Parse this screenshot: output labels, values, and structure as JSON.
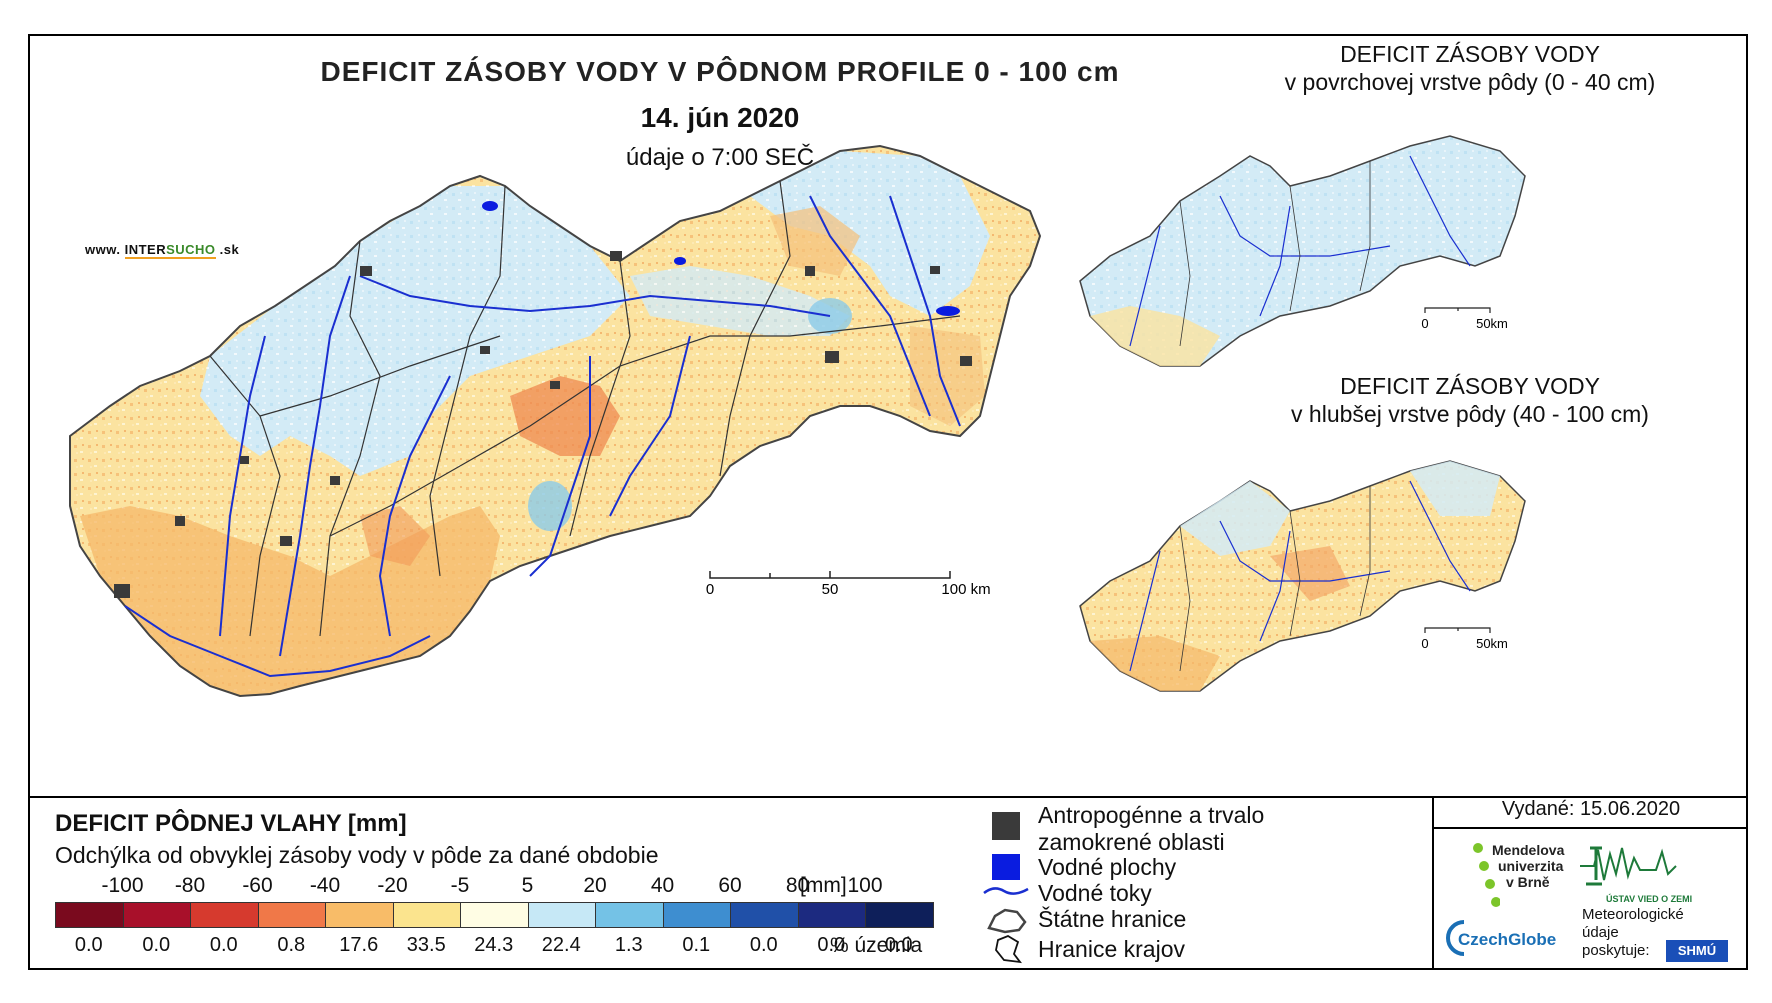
{
  "title": {
    "main": "DEFICIT ZÁSOBY VODY V PÔDNOM PROFILE 0 - 100 cm",
    "date": "14. jún 2020",
    "time": "údaje o 7:00 SEČ"
  },
  "website": {
    "prefix": "www.",
    "name_a": "INTER",
    "name_b": "SUCHO",
    "suffix": ".sk"
  },
  "main_scale": {
    "labels": [
      "0",
      "50",
      "100 km"
    ]
  },
  "inset_top": {
    "title_line1": "DEFICIT ZÁSOBY VODY",
    "title_line2": "v povrchovej vrstve pôdy (0 - 40 cm)",
    "scale_labels": [
      "0",
      "50km"
    ]
  },
  "inset_bottom": {
    "title_line1": "DEFICIT ZÁSOBY VODY",
    "title_line2": "v hlubšej vrstve pôdy (40 - 100 cm)",
    "scale_labels": [
      "0",
      "50km"
    ]
  },
  "legend": {
    "title": "DEFICIT PÔDNEJ VLAHY [mm]",
    "subtitle": "Odchýlka od obvyklej zásoby vody v pôde za dané obdobie",
    "unit": "[mm]",
    "pct_unit": "% územia",
    "boundaries": [
      "-100",
      "-80",
      "-60",
      "-40",
      "-20",
      "-5",
      "5",
      "20",
      "40",
      "60",
      "80",
      "100"
    ],
    "classes": [
      {
        "color": "#7a0a1e",
        "pct": "0.0"
      },
      {
        "color": "#a8102a",
        "pct": "0.0"
      },
      {
        "color": "#d63a2e",
        "pct": "0.0"
      },
      {
        "color": "#f07848",
        "pct": "0.8"
      },
      {
        "color": "#f8bc68",
        "pct": "17.6"
      },
      {
        "color": "#fbe48e",
        "pct": "33.5"
      },
      {
        "color": "#fffde4",
        "pct": "24.3"
      },
      {
        "color": "#c6e8f6",
        "pct": "22.4"
      },
      {
        "color": "#74c2e6",
        "pct": "1.3"
      },
      {
        "color": "#3e8ed0",
        "pct": "0.1"
      },
      {
        "color": "#2050a8",
        "pct": "0.0"
      },
      {
        "color": "#1c2a80",
        "pct": "0.0"
      },
      {
        "color": "#0e1f5a",
        "pct": "0.0"
      }
    ]
  },
  "symbols": {
    "anthropogenic_line1": "Antropogénne a trvalo",
    "anthropogenic_line2": "zamokrené oblasti",
    "water_bodies": "Vodné plochy",
    "water_courses": "Vodné toky",
    "state_border": "Štátne hranice",
    "region_border": "Hranice krajov"
  },
  "issued": "Vydané: 15.06.2020",
  "logos": {
    "mendel_1": "Mendelova",
    "mendel_2": "univerzita",
    "mendel_3": "v Brně",
    "czechglobe": "CzechGlobe",
    "uvz": "ÚSTAV VIED O ZEMI",
    "meteo_1": "Meteorologické",
    "meteo_2": "údaje",
    "meteo_3": "poskytuje:",
    "shmu": "SHMÚ"
  },
  "colors": {
    "dry": "#f5c77a",
    "neutral": "#fdf3c8",
    "wet": "#cfe8f5",
    "river": "#1a2fd0",
    "urban": "#3a3a3a"
  }
}
